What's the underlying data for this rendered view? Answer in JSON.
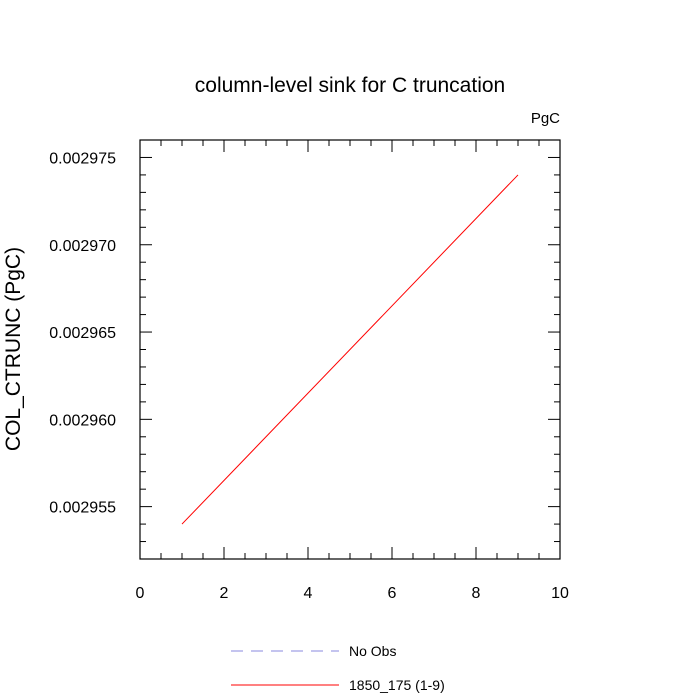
{
  "chart_data": {
    "type": "line",
    "title": "column-level sink for C truncation",
    "units_label": "PgC",
    "xlabel": "",
    "ylabel": "COL_CTRUNC  (PgC)",
    "xlim": [
      0,
      10
    ],
    "ylim": [
      0.002952,
      0.002976
    ],
    "x_ticks": [
      0,
      2,
      4,
      6,
      8,
      10
    ],
    "x_tick_labels": [
      "0",
      "2",
      "4",
      "6",
      "8",
      "10"
    ],
    "y_ticks": [
      0.002955,
      0.00296,
      0.002965,
      0.00297,
      0.002975
    ],
    "y_tick_labels": [
      "0.002955",
      "0.002960",
      "0.002965",
      "0.002970",
      "0.002975"
    ],
    "grid": false,
    "legend_position": "bottom",
    "series": [
      {
        "name": "No Obs",
        "color": "#8a8adf",
        "style": "dashed",
        "x": [],
        "values": []
      },
      {
        "name": "1850_175 (1-9)",
        "color": "#ff0000",
        "style": "solid",
        "x": [
          1,
          9
        ],
        "values": [
          0.002954,
          0.002974
        ]
      }
    ]
  }
}
